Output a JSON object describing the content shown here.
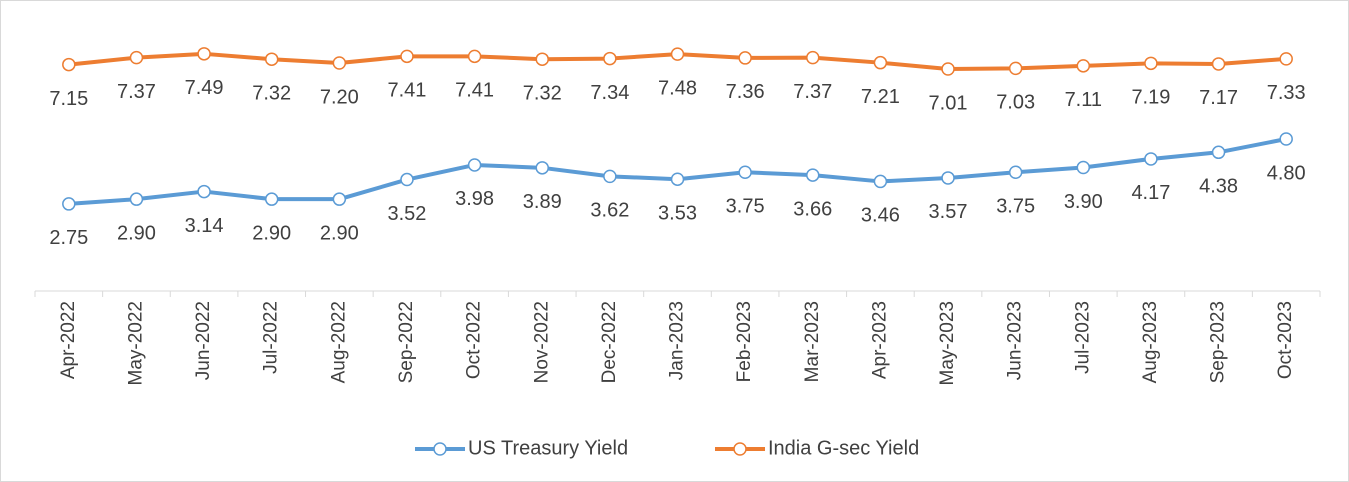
{
  "chart_data": {
    "type": "line",
    "categories": [
      "Apr-2022",
      "May-2022",
      "Jun-2022",
      "Jul-2022",
      "Aug-2022",
      "Sep-2022",
      "Oct-2022",
      "Nov-2022",
      "Dec-2022",
      "Jan-2023",
      "Feb-2023",
      "Mar-2023",
      "Apr-2023",
      "May-2023",
      "Jun-2023",
      "Jul-2023",
      "Aug-2023",
      "Sep-2023",
      "Oct-2023"
    ],
    "series": [
      {
        "name": "US Treasury Yield",
        "color": "#5b9bd5",
        "values": [
          2.75,
          2.9,
          3.14,
          2.9,
          2.9,
          3.52,
          3.98,
          3.89,
          3.62,
          3.53,
          3.75,
          3.66,
          3.46,
          3.57,
          3.75,
          3.9,
          4.17,
          4.38,
          4.8
        ],
        "value_labels": [
          "2.75",
          "2.90",
          "3.14",
          "2.90",
          "2.90",
          "3.52",
          "3.98",
          "3.89",
          "3.62",
          "3.53",
          "3.75",
          "3.66",
          "3.46",
          "3.57",
          "3.75",
          "3.90",
          "4.17",
          "4.38",
          "4.80"
        ]
      },
      {
        "name": "India G-sec Yield",
        "color": "#ed7d31",
        "values": [
          7.15,
          7.37,
          7.49,
          7.32,
          7.2,
          7.41,
          7.41,
          7.32,
          7.34,
          7.48,
          7.36,
          7.37,
          7.21,
          7.01,
          7.03,
          7.11,
          7.19,
          7.17,
          7.33
        ],
        "value_labels": [
          "7.15",
          "7.37",
          "7.49",
          "7.32",
          "7.20",
          "7.41",
          "7.41",
          "7.32",
          "7.34",
          "7.48",
          "7.36",
          "7.37",
          "7.21",
          "7.01",
          "7.03",
          "7.11",
          "7.19",
          "7.17",
          "7.33"
        ]
      }
    ],
    "ylim": [
      0,
      9
    ],
    "legend": "bottom"
  }
}
